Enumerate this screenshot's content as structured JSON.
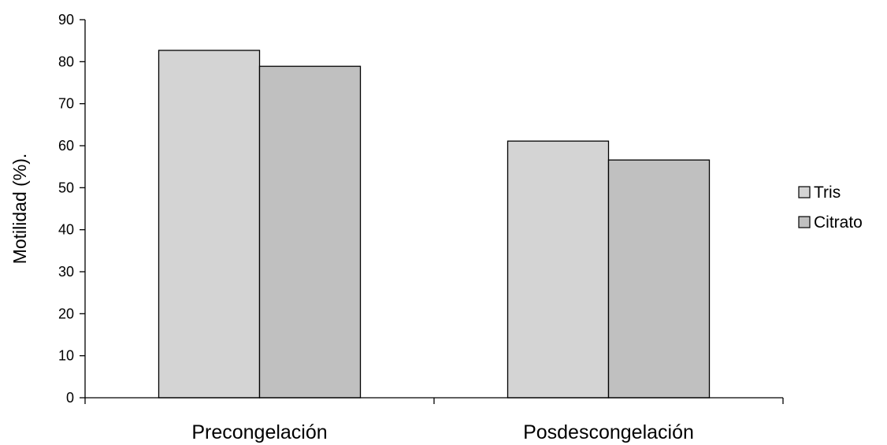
{
  "chart_data": {
    "type": "bar",
    "categories": [
      "Precongelación",
      "Posdescongelación"
    ],
    "series": [
      {
        "name": "Tris",
        "values": [
          82.7,
          61.1
        ],
        "color": "#d4d4d4"
      },
      {
        "name": "Citrato",
        "values": [
          78.9,
          56.6
        ],
        "color": "#c0c0c0"
      }
    ],
    "title": "",
    "xlabel": "",
    "ylabel": "Motilidad (%).",
    "ylim": [
      0,
      90
    ],
    "yticks": [
      0,
      10,
      20,
      30,
      40,
      50,
      60,
      70,
      80,
      90
    ],
    "grid": false,
    "legend": "right"
  }
}
